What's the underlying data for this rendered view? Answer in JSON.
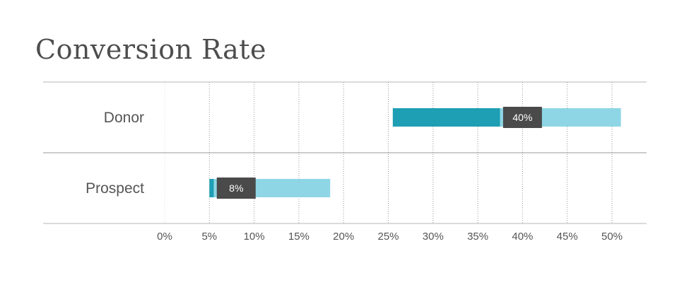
{
  "chart_data": {
    "type": "bar",
    "title": "Conversion Rate",
    "categories": [
      "Donor",
      "Prospect"
    ],
    "ranges": [
      {
        "category": "Donor",
        "low": 25.5,
        "mid": 37.5,
        "high": 51.0,
        "value": 40,
        "value_label": "40%"
      },
      {
        "category": "Prospect",
        "low": 5.0,
        "mid": 5.5,
        "high": 18.5,
        "value": 8,
        "value_label": "8%"
      }
    ],
    "x_ticks": [
      "0%",
      "5%",
      "10%",
      "15%",
      "20%",
      "25%",
      "30%",
      "35%",
      "40%",
      "45%",
      "50%"
    ],
    "xlim": [
      0,
      50
    ],
    "grid": true,
    "legend": "none",
    "colors": {
      "dark_segment": "#1e9fb4",
      "light_segment": "#8ed6e6",
      "value_box": "#4a4a4a",
      "grid": "#9a9a9a",
      "separator": "#b5b5b5"
    }
  }
}
